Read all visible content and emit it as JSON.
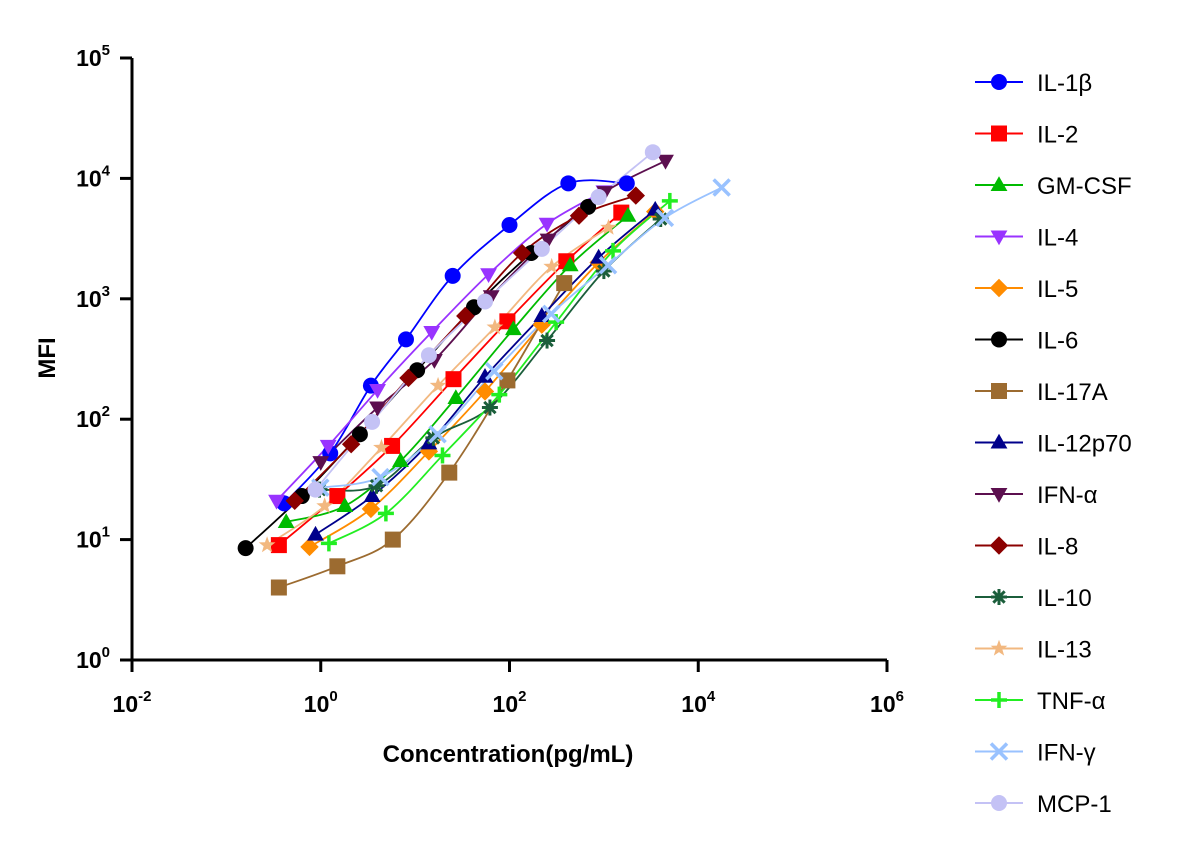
{
  "chart_data": {
    "type": "scatter",
    "xlabel": "Concentration(pg/mL)",
    "ylabel": "MFI",
    "x_scale": "log",
    "y_scale": "log",
    "xlim": [
      0.01,
      1000000
    ],
    "ylim": [
      1,
      100000
    ],
    "x_ticks": [
      {
        "value": 0.01,
        "base": "10",
        "exp": "-2"
      },
      {
        "value": 1,
        "base": "10",
        "exp": "0"
      },
      {
        "value": 100,
        "base": "10",
        "exp": "2"
      },
      {
        "value": 10000,
        "base": "10",
        "exp": "4"
      },
      {
        "value": 1000000,
        "base": "10",
        "exp": "6"
      }
    ],
    "y_ticks": [
      {
        "value": 1,
        "base": "10",
        "exp": "0"
      },
      {
        "value": 10,
        "base": "10",
        "exp": "1"
      },
      {
        "value": 100,
        "base": "10",
        "exp": "2"
      },
      {
        "value": 1000,
        "base": "10",
        "exp": "3"
      },
      {
        "value": 10000,
        "base": "10",
        "exp": "4"
      },
      {
        "value": 100000,
        "base": "10",
        "exp": "5"
      }
    ],
    "grid": false,
    "legend_position": "right",
    "series": [
      {
        "name": "IL-1β",
        "color": "#0000FF",
        "marker": "circle",
        "x": [
          0.41,
          1.26,
          3.4,
          8.0,
          25.0,
          100,
          420,
          1750
        ],
        "y": [
          20,
          52,
          190,
          460,
          1550,
          4100,
          9100,
          9100
        ]
      },
      {
        "name": "IL-2",
        "color": "#FF0000",
        "marker": "square",
        "x": [
          0.36,
          1.5,
          5.7,
          25.5,
          95,
          400,
          1530
        ],
        "y": [
          9,
          23,
          60,
          215,
          650,
          2050,
          5200
        ]
      },
      {
        "name": "GM-CSF",
        "color": "#00BB00",
        "marker": "triangle-up",
        "x": [
          0.43,
          1.8,
          7.0,
          27,
          110,
          440,
          1800
        ],
        "y": [
          14,
          19,
          45,
          150,
          560,
          1900,
          4900
        ]
      },
      {
        "name": "IL-4",
        "color": "#9933FF",
        "marker": "triangle-down",
        "x": [
          0.34,
          1.2,
          4.0,
          15,
          60,
          250,
          1000
        ],
        "y": [
          21,
          60,
          175,
          530,
          1600,
          4200,
          7800
        ]
      },
      {
        "name": "IL-5",
        "color": "#FF8C00",
        "marker": "diamond",
        "x": [
          0.76,
          3.4,
          14,
          55,
          220,
          880,
          3500
        ],
        "y": [
          8.7,
          18,
          54,
          170,
          610,
          2000,
          5300
        ]
      },
      {
        "name": "IL-6",
        "color": "#000000",
        "marker": "circle",
        "x": [
          0.16,
          0.63,
          2.6,
          10.5,
          42,
          170,
          680
        ],
        "y": [
          8.5,
          23,
          75,
          255,
          850,
          2400,
          5800
        ]
      },
      {
        "name": "IL-17A",
        "color": "#9C6B30",
        "marker": "square",
        "x": [
          0.36,
          1.5,
          5.8,
          23,
          95,
          380
        ],
        "y": [
          4,
          6,
          10,
          36,
          210,
          1350
        ]
      },
      {
        "name": "IL-12p70",
        "color": "#00008B",
        "marker": "triangle-up",
        "x": [
          0.88,
          3.5,
          14,
          55,
          220,
          880,
          3500
        ],
        "y": [
          11,
          23,
          63,
          225,
          720,
          2200,
          5500
        ]
      },
      {
        "name": "IFN-α",
        "color": "#5C0F4F",
        "marker": "triangle-down",
        "x": [
          1.0,
          4.0,
          16,
          64,
          256,
          1024,
          4500
        ],
        "y": [
          44,
          125,
          310,
          1050,
          3100,
          7700,
          14000
        ]
      },
      {
        "name": "IL-8",
        "color": "#8B0000",
        "marker": "diamond",
        "x": [
          0.53,
          2.1,
          8.5,
          34,
          136,
          545,
          2180
        ],
        "y": [
          21,
          62,
          220,
          720,
          2400,
          4900,
          7200
        ]
      },
      {
        "name": "IL-10",
        "color": "#1B5E3B",
        "marker": "asterisk",
        "x": [
          0.97,
          3.9,
          15.6,
          62,
          250,
          1000,
          4000
        ],
        "y": [
          26,
          28,
          70,
          125,
          450,
          1700,
          4600
        ]
      },
      {
        "name": "IL-13",
        "color": "#F2B880",
        "marker": "star",
        "x": [
          0.27,
          1.1,
          4.4,
          17.5,
          70,
          280,
          1120
        ],
        "y": [
          9,
          19,
          58,
          190,
          580,
          1850,
          3900
        ]
      },
      {
        "name": "TNF-α",
        "color": "#22EE22",
        "marker": "plus",
        "x": [
          1.22,
          4.9,
          19.5,
          78,
          312,
          1250,
          5000
        ],
        "y": [
          9.3,
          16.5,
          50,
          160,
          640,
          2500,
          6500
        ]
      },
      {
        "name": "IFN-γ",
        "color": "#99C2FF",
        "marker": "cross",
        "x": [
          0.99,
          4.3,
          17.3,
          69,
          277,
          1108,
          4430,
          17700
        ],
        "y": [
          27,
          33,
          75,
          250,
          750,
          1900,
          4700,
          8400
        ]
      },
      {
        "name": "MCP-1",
        "color": "#C4C2F5",
        "marker": "circle",
        "x": [
          0.88,
          3.5,
          14,
          55,
          220,
          880,
          3300
        ],
        "y": [
          26,
          95,
          340,
          950,
          2600,
          7000,
          16500
        ]
      }
    ]
  }
}
